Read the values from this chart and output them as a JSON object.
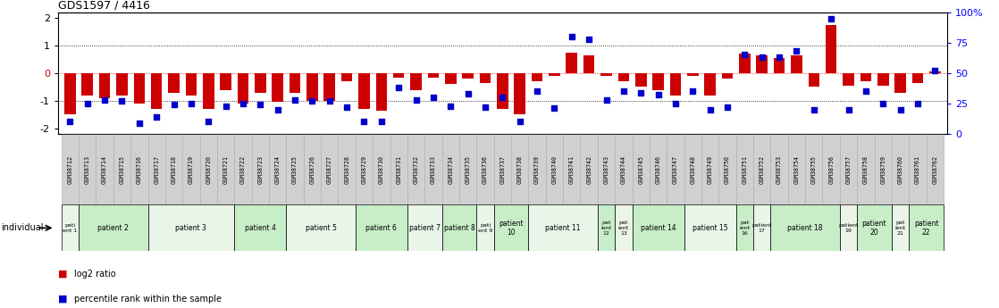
{
  "title": "GDS1597 / 4416",
  "gsm_labels": [
    "GSM38712",
    "GSM38713",
    "GSM38714",
    "GSM38715",
    "GSM38716",
    "GSM38717",
    "GSM38718",
    "GSM38719",
    "GSM38720",
    "GSM38721",
    "GSM38722",
    "GSM38723",
    "GSM38724",
    "GSM38725",
    "GSM38726",
    "GSM38727",
    "GSM38728",
    "GSM38729",
    "GSM38730",
    "GSM38731",
    "GSM38732",
    "GSM38733",
    "GSM38734",
    "GSM38735",
    "GSM38736",
    "GSM38737",
    "GSM38738",
    "GSM38739",
    "GSM38740",
    "GSM38741",
    "GSM38742",
    "GSM38743",
    "GSM38744",
    "GSM38745",
    "GSM38746",
    "GSM38747",
    "GSM38748",
    "GSM38749",
    "GSM38750",
    "GSM38751",
    "GSM38752",
    "GSM38753",
    "GSM38754",
    "GSM38755",
    "GSM38756",
    "GSM38757",
    "GSM38758",
    "GSM38759",
    "GSM38760",
    "GSM38761",
    "GSM38762"
  ],
  "log2_ratio": [
    -1.5,
    -0.8,
    -0.9,
    -0.8,
    -1.1,
    -1.3,
    -0.7,
    -0.8,
    -1.3,
    -0.6,
    -1.1,
    -0.7,
    -1.05,
    -0.7,
    -1.0,
    -1.0,
    -0.3,
    -1.3,
    -1.35,
    -0.15,
    -0.6,
    -0.15,
    -0.4,
    -0.2,
    -0.35,
    -1.3,
    -1.5,
    -0.3,
    -0.1,
    0.75,
    0.65,
    -0.1,
    -0.3,
    -0.5,
    -0.6,
    -0.8,
    -0.1,
    -0.8,
    -0.2,
    0.7,
    0.65,
    0.55,
    0.65,
    -0.5,
    1.75,
    -0.45,
    -0.3,
    -0.45,
    -0.7,
    -0.35,
    0.05
  ],
  "percentile_rank": [
    10,
    25,
    28,
    27,
    9,
    14,
    24,
    25,
    10,
    23,
    25,
    24,
    20,
    28,
    27,
    27,
    22,
    10,
    10,
    38,
    28,
    30,
    23,
    33,
    22,
    30,
    10,
    35,
    21,
    80,
    78,
    28,
    35,
    34,
    32,
    25,
    35,
    20,
    22,
    65,
    63,
    63,
    68,
    20,
    95,
    20,
    35,
    25,
    20,
    25,
    52
  ],
  "patient_groups": [
    {
      "label": "pati\nent 1",
      "start": 0,
      "end": 0,
      "alt": false
    },
    {
      "label": "patient 2",
      "start": 1,
      "end": 4,
      "alt": true
    },
    {
      "label": "patient 3",
      "start": 5,
      "end": 9,
      "alt": false
    },
    {
      "label": "patient 4",
      "start": 10,
      "end": 12,
      "alt": true
    },
    {
      "label": "patient 5",
      "start": 13,
      "end": 16,
      "alt": false
    },
    {
      "label": "patient 6",
      "start": 17,
      "end": 19,
      "alt": true
    },
    {
      "label": "patient 7",
      "start": 20,
      "end": 21,
      "alt": false
    },
    {
      "label": "patient 8",
      "start": 22,
      "end": 23,
      "alt": true
    },
    {
      "label": "pati\nent 9",
      "start": 24,
      "end": 24,
      "alt": false
    },
    {
      "label": "patient\n10",
      "start": 25,
      "end": 26,
      "alt": true
    },
    {
      "label": "patient 11",
      "start": 27,
      "end": 30,
      "alt": false
    },
    {
      "label": "pat\nient\n12",
      "start": 31,
      "end": 31,
      "alt": true
    },
    {
      "label": "pat\nient\n13",
      "start": 32,
      "end": 32,
      "alt": false
    },
    {
      "label": "patient 14",
      "start": 33,
      "end": 35,
      "alt": true
    },
    {
      "label": "patient 15",
      "start": 36,
      "end": 38,
      "alt": false
    },
    {
      "label": "pat\nient\n16",
      "start": 39,
      "end": 39,
      "alt": true
    },
    {
      "label": "patient\n17",
      "start": 40,
      "end": 40,
      "alt": false
    },
    {
      "label": "patient 18",
      "start": 41,
      "end": 44,
      "alt": true
    },
    {
      "label": "patient\n19",
      "start": 45,
      "end": 45,
      "alt": false
    },
    {
      "label": "patient\n20",
      "start": 46,
      "end": 47,
      "alt": true
    },
    {
      "label": "pat\nient\n21",
      "start": 48,
      "end": 48,
      "alt": false
    },
    {
      "label": "patient\n22",
      "start": 49,
      "end": 50,
      "alt": true
    }
  ],
  "color_alt_false": "#e8f5e8",
  "color_alt_true": "#c8eec8",
  "gsm_box_color": "#d0d0d0",
  "ylim": [
    -2.2,
    2.2
  ],
  "yticks_left": [
    -2,
    -1,
    0,
    1,
    2
  ],
  "yticks_right_pct": [
    0,
    25,
    50,
    75,
    100
  ],
  "bar_color": "#cc0000",
  "dot_color": "#0000cc",
  "legend_red_label": "log2 ratio",
  "legend_blue_label": "percentile rank within the sample",
  "individual_label": "individual"
}
